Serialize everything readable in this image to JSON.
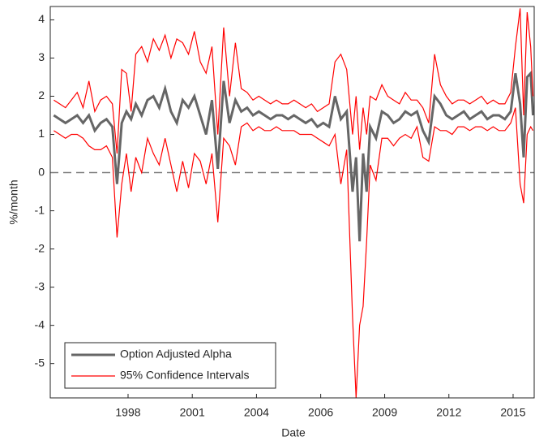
{
  "chart_data": {
    "type": "line",
    "xlabel": "Date",
    "ylabel": "%/month",
    "x": [
      1995.5,
      1995.75,
      1996.0,
      1996.25,
      1996.5,
      1996.75,
      1997.0,
      1997.25,
      1997.5,
      1997.75,
      1998.0,
      1998.2,
      1998.4,
      1998.6,
      1998.8,
      1999.0,
      1999.25,
      1999.5,
      1999.75,
      2000.0,
      2000.25,
      2000.5,
      2000.75,
      2001.0,
      2001.25,
      2001.5,
      2001.75,
      2002.0,
      2002.25,
      2002.5,
      2002.75,
      2003.0,
      2003.25,
      2003.5,
      2003.75,
      2004.0,
      2004.25,
      2004.5,
      2004.75,
      2005.0,
      2005.25,
      2005.5,
      2005.75,
      2006.0,
      2006.25,
      2006.5,
      2006.75,
      2007.0,
      2007.25,
      2007.5,
      2007.75,
      2008.0,
      2008.25,
      2008.4,
      2008.55,
      2008.7,
      2008.85,
      2009.0,
      2009.25,
      2009.5,
      2009.75,
      2010.0,
      2010.25,
      2010.5,
      2010.75,
      2011.0,
      2011.25,
      2011.5,
      2011.75,
      2012.0,
      2012.25,
      2012.5,
      2012.75,
      2013.0,
      2013.25,
      2013.5,
      2013.75,
      2014.0,
      2014.25,
      2014.5,
      2014.75,
      2015.0,
      2015.2,
      2015.4,
      2015.55,
      2015.7,
      2015.85,
      2015.95
    ],
    "series": [
      {
        "name": "Option Adjusted Alpha",
        "color": "#666666",
        "values": [
          1.5,
          1.4,
          1.3,
          1.4,
          1.5,
          1.3,
          1.5,
          1.1,
          1.3,
          1.4,
          1.2,
          -0.3,
          1.3,
          1.6,
          1.4,
          1.8,
          1.5,
          1.9,
          2.0,
          1.7,
          2.2,
          1.6,
          1.3,
          1.9,
          1.7,
          2.0,
          1.5,
          1.0,
          1.9,
          0.1,
          2.4,
          1.3,
          1.9,
          1.6,
          1.7,
          1.5,
          1.6,
          1.5,
          1.4,
          1.5,
          1.5,
          1.4,
          1.5,
          1.4,
          1.3,
          1.4,
          1.2,
          1.3,
          1.2,
          2.0,
          1.4,
          1.6,
          -0.5,
          0.4,
          -1.8,
          0.5,
          -0.5,
          1.2,
          0.9,
          1.6,
          1.5,
          1.3,
          1.4,
          1.6,
          1.5,
          1.6,
          1.1,
          0.8,
          2.0,
          1.8,
          1.5,
          1.4,
          1.5,
          1.6,
          1.4,
          1.5,
          1.6,
          1.4,
          1.5,
          1.5,
          1.4,
          1.6,
          2.6,
          1.8,
          0.4,
          2.5,
          2.6,
          1.5
        ]
      },
      {
        "name": "95% Confidence Intervals",
        "color": "#ff0000",
        "upper": [
          1.9,
          1.8,
          1.7,
          1.9,
          2.1,
          1.7,
          2.4,
          1.6,
          1.9,
          2.0,
          1.8,
          0.5,
          2.7,
          2.6,
          1.6,
          3.1,
          3.3,
          2.9,
          3.5,
          3.2,
          3.6,
          3.0,
          3.5,
          3.4,
          3.1,
          3.7,
          2.9,
          2.6,
          3.3,
          1.0,
          3.8,
          2.0,
          3.4,
          2.2,
          2.1,
          1.9,
          2.0,
          1.9,
          1.8,
          1.9,
          1.8,
          1.8,
          1.9,
          1.8,
          1.7,
          1.8,
          1.6,
          1.7,
          1.8,
          2.9,
          3.1,
          2.7,
          1.0,
          2.0,
          0.6,
          1.7,
          1.0,
          2.0,
          1.9,
          2.3,
          2.0,
          1.9,
          1.8,
          2.1,
          1.9,
          1.9,
          1.7,
          1.3,
          3.1,
          2.3,
          2.0,
          1.8,
          1.9,
          1.9,
          1.8,
          1.9,
          2.0,
          1.8,
          1.9,
          1.8,
          1.8,
          2.1,
          3.3,
          4.3,
          1.5,
          4.2,
          3.3,
          2.0
        ],
        "lower": [
          1.1,
          1.0,
          0.9,
          1.0,
          1.0,
          0.9,
          0.7,
          0.6,
          0.6,
          0.7,
          0.4,
          -1.7,
          -0.3,
          0.5,
          -0.5,
          0.4,
          0.0,
          0.9,
          0.5,
          0.2,
          0.9,
          0.2,
          -0.5,
          0.3,
          -0.4,
          0.5,
          0.3,
          -0.3,
          0.5,
          -1.3,
          0.9,
          0.7,
          0.2,
          1.2,
          1.3,
          1.1,
          1.2,
          1.1,
          1.1,
          1.2,
          1.1,
          1.1,
          1.1,
          1.0,
          1.0,
          1.0,
          0.9,
          0.8,
          0.7,
          1.0,
          -0.3,
          0.6,
          -3.8,
          -5.9,
          -4.0,
          -3.5,
          -1.8,
          0.2,
          -0.2,
          0.9,
          0.9,
          0.7,
          0.9,
          1.0,
          0.9,
          1.2,
          0.4,
          0.3,
          1.2,
          1.1,
          1.1,
          1.0,
          1.2,
          1.2,
          1.1,
          1.2,
          1.2,
          1.1,
          1.2,
          1.1,
          1.1,
          1.3,
          1.7,
          -0.3,
          -0.8,
          1.0,
          1.2,
          1.1
        ]
      }
    ],
    "xlim": [
      1995.35,
      2016.0
    ],
    "xticks": [
      {
        "value": 1998.67,
        "label": "1998"
      },
      {
        "value": 2001.41,
        "label": "2001"
      },
      {
        "value": 2004.15,
        "label": "2004"
      },
      {
        "value": 2006.89,
        "label": "2006"
      },
      {
        "value": 2009.62,
        "label": "2009"
      },
      {
        "value": 2012.36,
        "label": "2012"
      },
      {
        "value": 2015.1,
        "label": "2015"
      }
    ],
    "ylim": [
      -5.9,
      4.35
    ],
    "yticks": [
      -5,
      -4,
      -3,
      -2,
      -1,
      0,
      1,
      2,
      3,
      4
    ],
    "reference_line": 0,
    "legend": "lower left"
  }
}
